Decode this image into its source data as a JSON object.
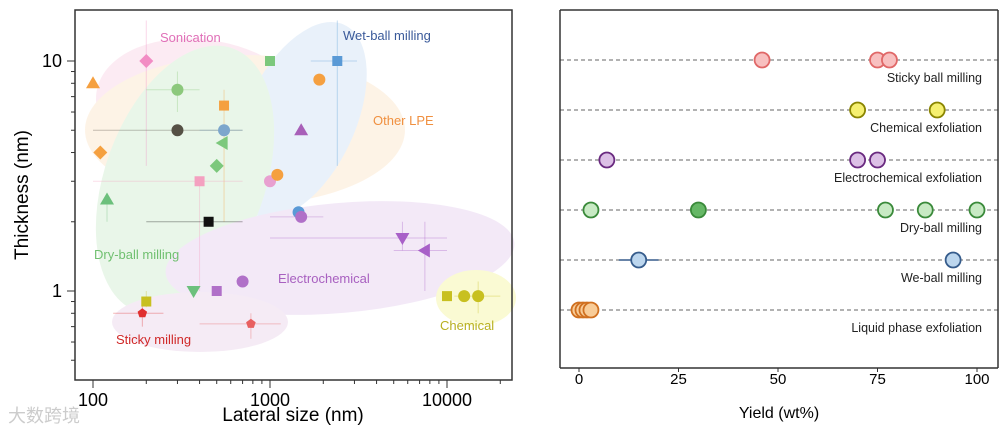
{
  "chart_data": [
    {
      "type": "scatter",
      "xlabel": "Lateral size (nm)",
      "ylabel": "Thickness (nm)",
      "xscale": "log",
      "yscale": "log",
      "xlim": [
        80,
        22000
      ],
      "ylim": [
        0.5,
        18
      ],
      "xticks": [
        {
          "v": 100,
          "label": "100"
        },
        {
          "v": 1000,
          "label": "1000"
        },
        {
          "v": 10000,
          "label": "10000"
        }
      ],
      "yticks": [
        {
          "v": 1,
          "label": "1"
        },
        {
          "v": 10,
          "label": "10"
        }
      ],
      "region_labels": {
        "sonication": "Sonication",
        "wet": "Wet-ball milling",
        "lpe": "Other LPE",
        "dry": "Dry-ball milling",
        "electro": "Electrochemical",
        "sticky": "Sticky milling",
        "chemical": "Chemical"
      },
      "points": [
        {
          "x": 200,
          "y": 10,
          "shape": "diamond",
          "color": "#f28cc4",
          "yerr": [
            3.5,
            15
          ]
        },
        {
          "x": 100,
          "y": 8,
          "shape": "triangle",
          "color": "#f5a040"
        },
        {
          "x": 300,
          "y": 7.5,
          "shape": "circle",
          "color": "#8cc87c",
          "xerr": [
            200,
            400
          ],
          "yerr": [
            6,
            9
          ]
        },
        {
          "x": 1000,
          "y": 10,
          "shape": "square",
          "color": "#7cc87c"
        },
        {
          "x": 2400,
          "y": 10,
          "shape": "square",
          "color": "#5a9ad6",
          "xerr": [
            1700,
            3100
          ],
          "yerr": [
            3.5,
            15
          ]
        },
        {
          "x": 1900,
          "y": 8.3,
          "shape": "circle",
          "color": "#f5a040"
        },
        {
          "x": 550,
          "y": 6.4,
          "shape": "square",
          "color": "#f5a040",
          "yerr": [
            2,
            7.5
          ]
        },
        {
          "x": 300,
          "y": 5,
          "shape": "circle",
          "color": "#555045",
          "xerr": [
            100,
            700
          ]
        },
        {
          "x": 550,
          "y": 5,
          "shape": "circle",
          "color": "#7ca6cc",
          "xerr": [
            400,
            700
          ]
        },
        {
          "x": 1500,
          "y": 5,
          "shape": "triangle",
          "color": "#a860b8"
        },
        {
          "x": 540,
          "y": 4.4,
          "shape": "triangle-left",
          "color": "#7cc87c"
        },
        {
          "x": 110,
          "y": 4,
          "shape": "diamond",
          "color": "#f5a040"
        },
        {
          "x": 500,
          "y": 3.5,
          "shape": "diamond",
          "color": "#7cc87c"
        },
        {
          "x": 400,
          "y": 3,
          "shape": "square",
          "color": "#f4a0c0",
          "xerr": [
            100,
            700
          ],
          "yerr": [
            1,
            3
          ]
        },
        {
          "x": 1000,
          "y": 3,
          "shape": "circle",
          "color": "#e8a0d0"
        },
        {
          "x": 1100,
          "y": 3.2,
          "shape": "circle",
          "color": "#f5a040"
        },
        {
          "x": 120,
          "y": 2.5,
          "shape": "triangle",
          "color": "#6cc07c",
          "yerr": [
            2,
            2.5
          ]
        },
        {
          "x": 1450,
          "y": 2.2,
          "shape": "circle",
          "color": "#5a9ad6"
        },
        {
          "x": 1500,
          "y": 2.1,
          "shape": "circle",
          "color": "#b070c8",
          "xerr": [
            1000,
            2000
          ]
        },
        {
          "x": 450,
          "y": 2,
          "shape": "square",
          "color": "#111111",
          "xerr": [
            200,
            700
          ]
        },
        {
          "x": 5600,
          "y": 1.7,
          "shape": "triangle-down",
          "color": "#a860c8",
          "xerr": [
            1000,
            10000
          ],
          "yerr": [
            1.5,
            2.0
          ]
        },
        {
          "x": 7500,
          "y": 1.5,
          "shape": "triangle-left",
          "color": "#a860c8",
          "xerr": [
            5000,
            10000
          ],
          "yerr": [
            1,
            2
          ]
        },
        {
          "x": 700,
          "y": 1.1,
          "shape": "circle",
          "color": "#b070c8"
        },
        {
          "x": 370,
          "y": 1,
          "shape": "triangle-down",
          "color": "#6cc07c"
        },
        {
          "x": 500,
          "y": 1,
          "shape": "square",
          "color": "#b070c8"
        },
        {
          "x": 200,
          "y": 0.9,
          "shape": "square",
          "color": "#c8c020",
          "yerr": [
            0.85,
            1.0
          ]
        },
        {
          "x": 10000,
          "y": 0.95,
          "shape": "square",
          "color": "#c8c020"
        },
        {
          "x": 12500,
          "y": 0.95,
          "shape": "circle",
          "color": "#c8c020"
        },
        {
          "x": 15000,
          "y": 0.95,
          "shape": "circle",
          "color": "#c8c020",
          "xerr": [
            11000,
            20000
          ],
          "yerr": [
            0.8,
            1.1
          ]
        },
        {
          "x": 190,
          "y": 0.8,
          "shape": "pentagon",
          "color": "#e03030",
          "xerr": [
            130,
            250
          ],
          "yerr": [
            0.7,
            0.9
          ]
        },
        {
          "x": 780,
          "y": 0.72,
          "shape": "pentagon",
          "color": "#e86060",
          "xerr": [
            400,
            1150
          ],
          "yerr": [
            0.62,
            0.8
          ]
        }
      ]
    },
    {
      "type": "scatter",
      "xlabel": "Yield (wt%)",
      "xlim": [
        -5,
        103
      ],
      "xticks": [
        0,
        25,
        50,
        75,
        100
      ],
      "series": [
        {
          "name": "Sticky ball milling",
          "values": [
            46,
            75,
            78
          ],
          "fill": "#f8c0c0",
          "stroke": "#e06868"
        },
        {
          "name": "Chemical exfoliation",
          "values": [
            70,
            90
          ],
          "fill": "#f6f070",
          "stroke": "#8a8500"
        },
        {
          "name": "Electrochemical exfoliation",
          "values": [
            7,
            70,
            75
          ],
          "fill": "#dcc0e6",
          "stroke": "#6a2a80"
        },
        {
          "name": "Dry-ball milling",
          "values": [
            3,
            30,
            77,
            87,
            100
          ],
          "fill": "#c8eac4",
          "stroke": "#3a8a3a",
          "dark": [
            30
          ]
        },
        {
          "name": "We-ball milling",
          "values": [
            15,
            94
          ],
          "fill": "#bcd6ee",
          "stroke": "#365c8c"
        },
        {
          "name": "Liquid phase exfoliation",
          "values": [
            0,
            1,
            2,
            3
          ],
          "fill": "#f8cc98",
          "stroke": "#d07020"
        }
      ]
    }
  ],
  "watermark": "大数跨境"
}
